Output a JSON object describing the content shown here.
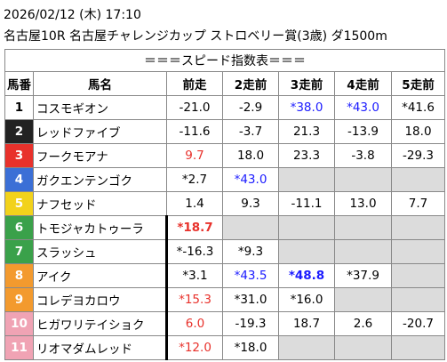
{
  "header": {
    "datetime": "2026/02/12 (木) 17:10",
    "race": "名古屋10R 名古屋チャレンジカップ ストロベリー賞(3歳) ダ1500m"
  },
  "table": {
    "title": "＝＝＝スピード指数表＝＝＝",
    "columns": [
      "馬番",
      "馬名",
      "前走",
      "2走前",
      "3走前",
      "4走前",
      "5走前"
    ],
    "rows": [
      {
        "number": "1",
        "frame_color": "#ffffff",
        "number_color": "#000000",
        "name": "コスモギオン",
        "cells": [
          "-21.0",
          "-2.9",
          {
            "text": "*38.0",
            "color": "#1a1aff"
          },
          {
            "text": "*43.0",
            "color": "#1a1aff"
          },
          "*41.6"
        ]
      },
      {
        "number": "2",
        "frame_color": "#222222",
        "number_color": "#ffffff",
        "name": "レッドファイブ",
        "cells": [
          "-11.6",
          "-3.7",
          "21.3",
          "-13.9",
          "18.0"
        ]
      },
      {
        "number": "3",
        "frame_color": "#e8312b",
        "number_color": "#ffffff",
        "name": "フークモアナ",
        "cells": [
          {
            "text": "9.7",
            "color": "#e8312b"
          },
          "18.0",
          "23.3",
          "-3.8",
          "-29.3"
        ]
      },
      {
        "number": "4",
        "frame_color": "#3b6fd6",
        "number_color": "#ffffff",
        "name": "ガクエンテンゴク",
        "cells": [
          "*2.7",
          {
            "text": "*43.0",
            "color": "#1a1aff"
          },
          null,
          null,
          null
        ]
      },
      {
        "number": "5",
        "frame_color": "#f2d21b",
        "number_color": "#ffffff",
        "name": "ナフセッド",
        "cells": [
          "1.4",
          "9.3",
          "-11.1",
          "13.0",
          "7.7"
        ]
      },
      {
        "number": "6",
        "frame_color": "#3aa14a",
        "number_color": "#ffffff",
        "name": "トモジャカトゥーラ",
        "thick": true,
        "cells": [
          {
            "text": "*18.7",
            "color": "#e8312b",
            "bold": true
          },
          null,
          null,
          null,
          null
        ]
      },
      {
        "number": "7",
        "frame_color": "#3aa14a",
        "number_color": "#ffffff",
        "name": "スラッシュ",
        "thick": true,
        "cells": [
          "*-16.3",
          "*9.3",
          null,
          null,
          null
        ]
      },
      {
        "number": "8",
        "frame_color": "#f39a2e",
        "number_color": "#ffffff",
        "name": "アイク",
        "thick": true,
        "cells": [
          "*3.1",
          {
            "text": "*43.5",
            "color": "#1a1aff"
          },
          {
            "text": "*48.8",
            "color": "#1a1aff",
            "bold": true
          },
          "*37.9",
          null
        ]
      },
      {
        "number": "9",
        "frame_color": "#f39a2e",
        "number_color": "#ffffff",
        "name": "コレデヨカロウ",
        "thick": true,
        "cells": [
          {
            "text": "*15.3",
            "color": "#e8312b"
          },
          "*31.0",
          "*16.0",
          null,
          null
        ]
      },
      {
        "number": "10",
        "frame_color": "#f0a3b4",
        "number_color": "#ffffff",
        "name": "ヒガワリテイショク",
        "thick": true,
        "cells": [
          {
            "text": "6.0",
            "color": "#e8312b"
          },
          "-19.3",
          "18.7",
          "2.6",
          "-20.7"
        ]
      },
      {
        "number": "11",
        "frame_color": "#f0a3b4",
        "number_color": "#ffffff",
        "name": "リオマダムレッド",
        "thick": true,
        "cells": [
          {
            "text": "*12.0",
            "color": "#e8312b"
          },
          "*18.0",
          null,
          null,
          null
        ]
      }
    ]
  }
}
